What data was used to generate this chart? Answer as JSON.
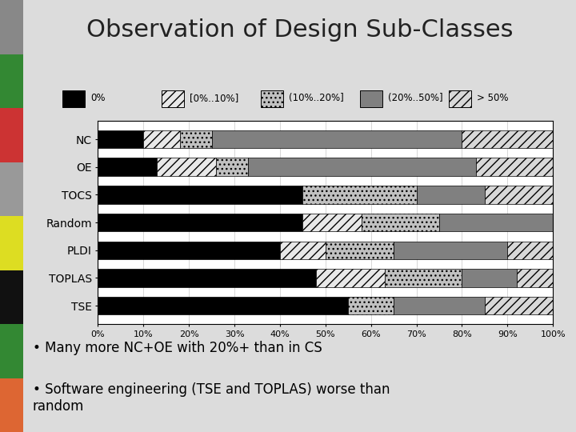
{
  "categories": [
    "NC",
    "OE",
    "TOCS",
    "Random",
    "PLDI",
    "TOPLAS",
    "TSE"
  ],
  "segments": {
    "0%": [
      10,
      13,
      45,
      45,
      40,
      48,
      55
    ],
    "[0%..10%]": [
      8,
      13,
      0,
      13,
      10,
      15,
      0
    ],
    "(10%..20%]": [
      7,
      7,
      25,
      17,
      15,
      17,
      10
    ],
    "(20%..50%]": [
      55,
      50,
      15,
      25,
      25,
      12,
      20
    ],
    "> 50%": [
      20,
      17,
      15,
      0,
      10,
      8,
      15
    ]
  },
  "title": "Observation of Design Sub-Classes",
  "title_fontsize": 22,
  "title_color": "#222222",
  "bullet1": "Many more NC+OE with 20%+ than in CS",
  "bullet2": "Software engineering (TSE and TOPLAS) worse than\nrandom",
  "bg_color": "#dcdcdc",
  "chart_bg": "#ffffff",
  "legend_labels": [
    "0%",
    "[0%..10%]",
    "(10%..20%]",
    "(20%..50%]",
    "> 50%"
  ],
  "face_colors": [
    "#000000",
    "#e8e8e8",
    "#c0c0c0",
    "#808080",
    "#d8d8d8"
  ],
  "hatches": [
    "",
    "///",
    "...",
    "##",
    "///"
  ],
  "side_colors": [
    "#e07040",
    "#40a040",
    "#101010",
    "#e0e040",
    "#a0a0a0",
    "#e05050",
    "#40a040",
    "#a0a0a0"
  ],
  "bar_height": 0.65
}
